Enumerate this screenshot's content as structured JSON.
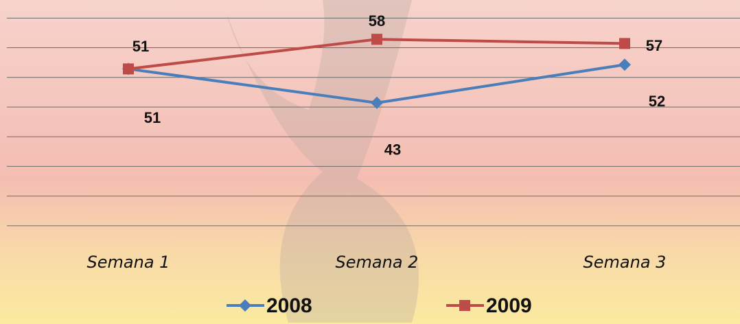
{
  "chart_data": {
    "type": "line",
    "categories": [
      "Semana 1",
      "Semana 2",
      "Semana 3"
    ],
    "series": [
      {
        "name": "2008",
        "color": "#4a7ebb",
        "values": [
          51,
          43,
          52
        ]
      },
      {
        "name": "2009",
        "color": "#be4b48",
        "values": [
          51,
          58,
          57
        ]
      }
    ],
    "ylim": [
      13,
      65
    ],
    "yticks": [
      14,
      21,
      28,
      35,
      42,
      49,
      56,
      63
    ],
    "grid": true,
    "legend": "bottom"
  }
}
